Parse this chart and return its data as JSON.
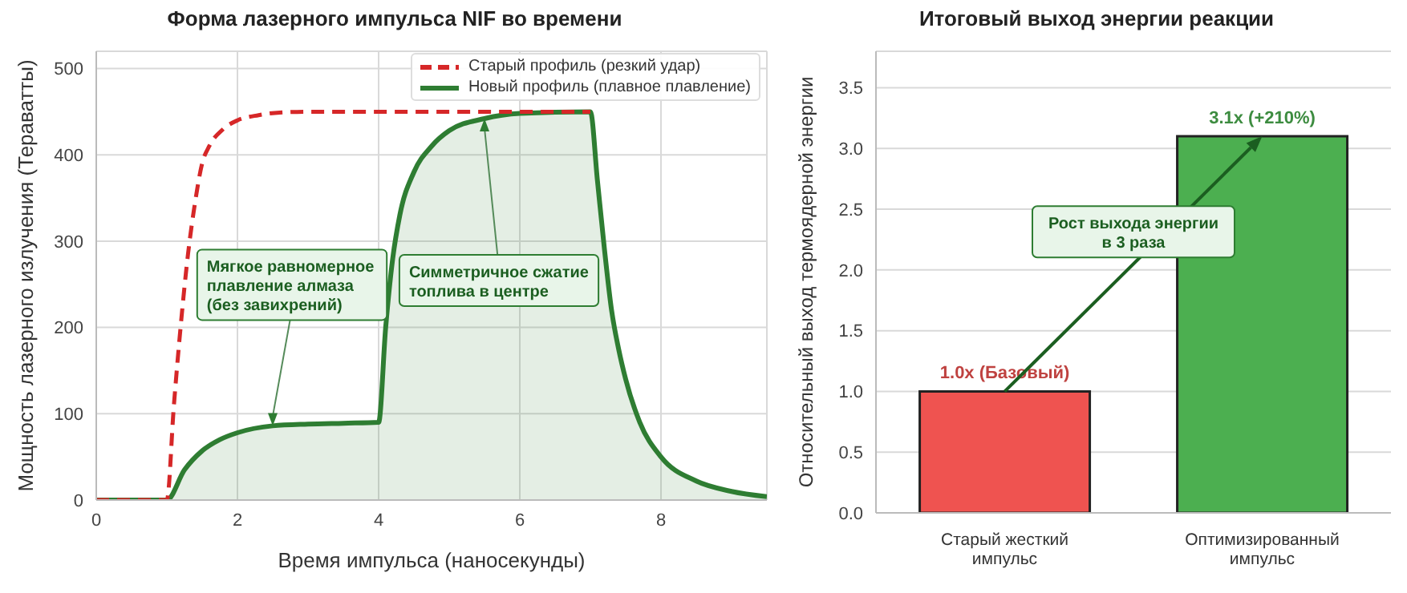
{
  "chart_data": [
    {
      "type": "line",
      "title": "Форма лазерного импульса NIF во времени",
      "xlabel": "Время импульса (наносекунды)",
      "ylabel": "Мощность лазерного излучения (Тераватты)",
      "xlim": [
        0,
        9.5
      ],
      "xticks": [
        0,
        2,
        4,
        6,
        8
      ],
      "ylim": [
        0,
        520
      ],
      "yticks": [
        0,
        100,
        200,
        300,
        400,
        500
      ],
      "grid": true,
      "legend": "top right",
      "series": [
        {
          "name": "Старый профиль (резкий удар)",
          "type": "line",
          "color": "#d62728",
          "line_style": "dashed",
          "x": [
            0,
            1,
            1.1,
            1.2,
            1.3,
            1.4,
            1.5,
            1.6,
            1.8,
            2,
            2.3,
            2.6,
            3,
            4,
            5,
            6,
            7
          ],
          "values": [
            0,
            0,
            110,
            205,
            285,
            345,
            390,
            410,
            430,
            440,
            446,
            449,
            450,
            450,
            450,
            450,
            450
          ]
        },
        {
          "name": "Новый профиль (плавное плавление)",
          "type": "area",
          "color": "#2e7d32",
          "line_style": "solid",
          "x": [
            0,
            1,
            1.25,
            1.5,
            1.75,
            2,
            2.5,
            3,
            3.5,
            4,
            4.1,
            4.2,
            4.3,
            4.5,
            4.75,
            5,
            5.5,
            6,
            7,
            7.1,
            7.2,
            7.3,
            7.4,
            7.5,
            7.7,
            8,
            8.5,
            9,
            9.5
          ],
          "values": [
            0,
            0,
            35,
            57,
            70,
            78,
            86,
            88,
            89,
            90,
            200,
            280,
            330,
            380,
            410,
            428,
            442,
            448,
            450,
            370,
            290,
            220,
            175,
            140,
            90,
            50,
            22,
            10,
            4
          ]
        }
      ],
      "annotations": [
        {
          "text": "Мягкое равномерное плавление алмаза (без завихрений)",
          "x": 2.5,
          "y": 86
        },
        {
          "text": "Симметричное сжатие топлива в центре",
          "x": 5.5,
          "y": 442
        }
      ]
    },
    {
      "type": "bar",
      "title": "Итоговый выход энергии реакции",
      "ylabel": "Относительный выход термоядерной энергии",
      "categories": [
        "Старый жесткий импульс",
        "Оптимизированный импульс"
      ],
      "values": [
        1.0,
        3.1
      ],
      "colors": [
        "#ef5350",
        "#4caf50"
      ],
      "value_labels": [
        "1.0x (Базовый)",
        "3.1x (+210%)"
      ],
      "ylim": [
        0,
        3.8
      ],
      "yticks": [
        {
          "value": 0,
          "label": "0.0"
        },
        0.5,
        {
          "value": 1,
          "label": "1.0"
        },
        1.5,
        {
          "value": 2,
          "label": "2.0"
        },
        2.5,
        {
          "value": 3,
          "label": "3.0"
        },
        3.5
      ],
      "grid": "y",
      "annotations": [
        "Рост выхода энергии в 3 раза"
      ]
    }
  ]
}
